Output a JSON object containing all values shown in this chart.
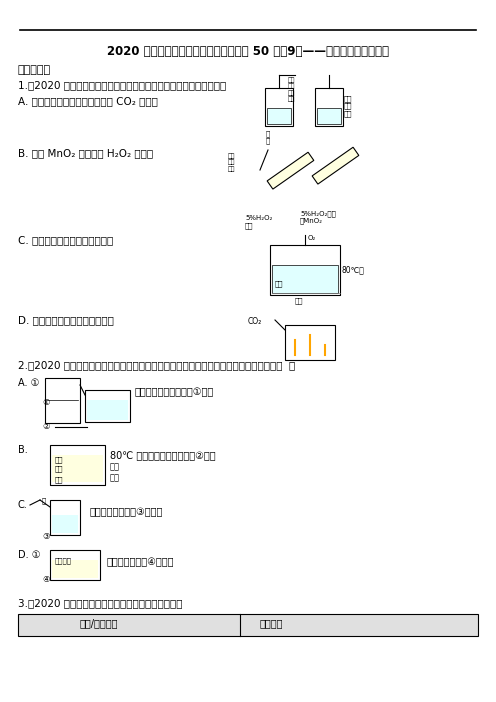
{
  "title": "2020 年全国各地化学中考模拟试题精选 50 题（9）——实验方案设计和评价",
  "section1": "一、单选题",
  "q1": "1.（2020 扬州模拟）下列实验方案，不能达到相应实验目的的是（）",
  "q1_A": "A. 比较空气与人体呼出的气体中 CO₂ 的含量",
  "q1_B": "B. 探究 MnO₂ 能否加快 H₂O₂ 的分解",
  "q1_C": "C. 验证燃烧需要温度达到着火点",
  "q1_D": "D. 证明二氧化碳的密度比空气大",
  "q2": "2.（2020 凤县模拟）为完成下图所示的四个实验，图中编号处所指物质的选用正确的是（  ）",
  "q2_A": "A. ①          测定空气中氧气含量，①红磷",
  "q2_B": "B.              80℃ 使热水中的白磷燃烧，②氮气",
  "q2_B2": "             热水",
  "q2_B3": "             白磷",
  "q2_C": "C.              用水稀释浓硫酸，③浓硫酸",
  "q2_D": "D. ①          探究分子运动，④浓盐酸",
  "q3": "3.（2020 凤县模拟）下列实验方案设计正确的是（）",
  "q3_header1": "选项/实验目的",
  "q3_header2": "实验方案",
  "bg_color": "#ffffff",
  "text_color": "#000000",
  "border_color": "#000000"
}
